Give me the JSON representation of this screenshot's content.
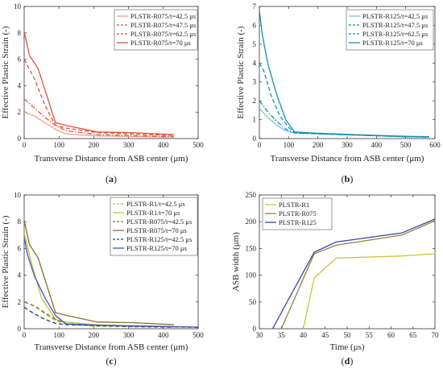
{
  "chart_data": [
    {
      "panel": "(a)",
      "type": "line",
      "xlabel": "Transverse Distance from ASB center (μm)",
      "ylabel": "Effective Plastic Strain (-)",
      "xlim": [
        0,
        500
      ],
      "ylim": [
        0,
        10
      ],
      "xticks": [
        0,
        100,
        200,
        300,
        400,
        500
      ],
      "yticks": [
        0,
        2,
        4,
        6,
        8,
        10
      ],
      "grid": false,
      "legend_position": "top-right",
      "series": [
        {
          "name": "PLSTR-R075/t=42.5 μs",
          "color": "#f2a38f",
          "style": "solid",
          "x": [
            0,
            30,
            60,
            90,
            120,
            210,
            310,
            430
          ],
          "y": [
            2.0,
            1.7,
            1.2,
            0.7,
            0.35,
            0.2,
            0.15,
            0.1
          ]
        },
        {
          "name": "PLSTR-R075/t=47.5 μs",
          "color": "#e0523a",
          "style": "dashdot",
          "x": [
            0,
            30,
            60,
            90,
            120,
            210,
            310,
            430
          ],
          "y": [
            3.0,
            2.3,
            1.6,
            1.0,
            0.6,
            0.3,
            0.22,
            0.15
          ]
        },
        {
          "name": "PLSTR-R075/t=62.5 μs",
          "color": "#e0523a",
          "style": "dashed",
          "x": [
            0,
            30,
            60,
            90,
            120,
            210,
            310,
            430
          ],
          "y": [
            6.0,
            4.5,
            2.5,
            1.0,
            0.8,
            0.45,
            0.35,
            0.25
          ]
        },
        {
          "name": "PLSTR-R075/t=70 μs",
          "color": "#e0523a",
          "style": "solid",
          "x": [
            0,
            15,
            40,
            90,
            120,
            210,
            310,
            430
          ],
          "y": [
            8.1,
            6.3,
            5.3,
            1.2,
            1.0,
            0.5,
            0.45,
            0.3
          ]
        }
      ],
      "label_text": "a"
    },
    {
      "panel": "(b)",
      "type": "line",
      "xlabel": "Transverse Distance from ASB center (μm)",
      "ylabel": "Effective Plastic Strain (-)",
      "xlim": [
        0,
        600
      ],
      "ylim": [
        0,
        7
      ],
      "xticks": [
        0,
        100,
        200,
        300,
        400,
        500,
        600
      ],
      "yticks": [
        0,
        1,
        2,
        3,
        4,
        5,
        6,
        7
      ],
      "grid": false,
      "legend_position": "top-right",
      "series": [
        {
          "name": "PLSTR-R125/t=42.5 μs",
          "color": "#7fc5dd",
          "style": "solid",
          "x": [
            0,
            30,
            60,
            90,
            120,
            200,
            300,
            400,
            500,
            580
          ],
          "y": [
            1.6,
            1.1,
            0.7,
            0.4,
            0.3,
            0.25,
            0.2,
            0.15,
            0.1,
            0.08
          ]
        },
        {
          "name": "PLSTR-R125/t=47.5 μs",
          "color": "#138fb5",
          "style": "dashdot",
          "x": [
            0,
            30,
            60,
            90,
            120,
            200,
            300,
            400,
            500,
            580
          ],
          "y": [
            2.0,
            1.4,
            0.9,
            0.5,
            0.3,
            0.25,
            0.2,
            0.15,
            0.1,
            0.08
          ]
        },
        {
          "name": "PLSTR-R125/t=62.5 μs",
          "color": "#138fb5",
          "style": "dashed",
          "x": [
            0,
            15,
            40,
            70,
            100,
            120,
            200,
            300,
            400,
            500,
            580
          ],
          "y": [
            4.0,
            3.6,
            2.3,
            1.2,
            0.6,
            0.3,
            0.25,
            0.2,
            0.15,
            0.1,
            0.08
          ]
        },
        {
          "name": "PLSTR-R125/t=70 μs",
          "color": "#138fb5",
          "style": "solid",
          "x": [
            0,
            10,
            30,
            60,
            90,
            120,
            200,
            300,
            400,
            500,
            580
          ],
          "y": [
            6.8,
            5.5,
            3.9,
            2.3,
            1.0,
            0.35,
            0.28,
            0.22,
            0.17,
            0.12,
            0.1
          ]
        }
      ],
      "label_text": "b"
    },
    {
      "panel": "(c)",
      "type": "line",
      "xlabel": "Transverse Distance from ASB center (μm)",
      "ylabel": "Effective Plastic Strain (-)",
      "xlim": [
        0,
        500
      ],
      "ylim": [
        0,
        10
      ],
      "xticks": [
        0,
        100,
        200,
        300,
        400,
        500
      ],
      "yticks": [
        0,
        2,
        4,
        6,
        8,
        10
      ],
      "grid": false,
      "legend_position": "top-right",
      "series": [
        {
          "name": "PLSTR-R1/t=42.5 μs",
          "color": "#b8c53a",
          "style": "dashed",
          "x": [
            0,
            30,
            60,
            90,
            120,
            200,
            300,
            430
          ],
          "y": [
            2.0,
            1.7,
            1.1,
            0.6,
            0.4,
            0.25,
            0.2,
            0.15
          ]
        },
        {
          "name": "PLSTR-R1/t=70 μs",
          "color": "#b8c53a",
          "style": "solid",
          "x": [
            0,
            20,
            50,
            90,
            120,
            200,
            300,
            430
          ],
          "y": [
            7.2,
            5.0,
            2.3,
            0.7,
            0.5,
            0.3,
            0.2,
            0.15
          ]
        },
        {
          "name": "PLSTR-R075/t=42.5 μs",
          "color": "#8c6d2a",
          "style": "dashed",
          "x": [
            0,
            30,
            60,
            90,
            120,
            210,
            310,
            430
          ],
          "y": [
            2.0,
            1.7,
            1.2,
            0.7,
            0.35,
            0.2,
            0.15,
            0.1
          ]
        },
        {
          "name": "PLSTR-R075/t=70 μs",
          "color": "#8c6d2a",
          "style": "solid",
          "x": [
            0,
            15,
            40,
            90,
            120,
            210,
            310,
            430
          ],
          "y": [
            8.1,
            6.3,
            5.3,
            1.2,
            1.0,
            0.5,
            0.45,
            0.3
          ]
        },
        {
          "name": "PLSTR-R125/t=42.5 μs",
          "color": "#1f3a93",
          "style": "dashed",
          "x": [
            0,
            30,
            60,
            90,
            120,
            200,
            300,
            400,
            500
          ],
          "y": [
            1.6,
            1.1,
            0.7,
            0.4,
            0.3,
            0.25,
            0.2,
            0.15,
            0.1
          ]
        },
        {
          "name": "PLSTR-R125/t=70 μs",
          "color": "#3c55c9",
          "style": "solid",
          "x": [
            0,
            10,
            30,
            60,
            90,
            120,
            200,
            300,
            400,
            500
          ],
          "y": [
            6.8,
            5.5,
            3.9,
            2.3,
            1.0,
            0.35,
            0.28,
            0.22,
            0.17,
            0.12
          ]
        }
      ],
      "label_text": "c"
    },
    {
      "panel": "(d)",
      "type": "line",
      "xlabel": "Time (μs)",
      "ylabel": "ASB width (μm)",
      "xlim": [
        30,
        70
      ],
      "ylim": [
        0,
        250
      ],
      "xticks": [
        30,
        35,
        40,
        45,
        50,
        55,
        60,
        65,
        70
      ],
      "yticks": [
        0,
        50,
        100,
        150,
        200,
        250
      ],
      "grid": false,
      "legend_position": "top-left",
      "series": [
        {
          "name": "PLSTR-R1",
          "color": "#c8c73b",
          "style": "solid",
          "x": [
            40,
            42.5,
            47.5,
            62.5,
            70
          ],
          "y": [
            0,
            95,
            132,
            136,
            140
          ]
        },
        {
          "name": "PLSTR-R075",
          "color": "#9a7f3a",
          "style": "solid",
          "x": [
            35,
            42.5,
            47.5,
            62.5,
            70
          ],
          "y": [
            0,
            140,
            156,
            175,
            202
          ]
        },
        {
          "name": "PLSTR-R125",
          "color": "#3448a8",
          "style": "solid",
          "x": [
            33,
            42.5,
            47.5,
            62.5,
            70
          ],
          "y": [
            0,
            143,
            162,
            179,
            205
          ]
        }
      ],
      "label_text": "d"
    }
  ]
}
